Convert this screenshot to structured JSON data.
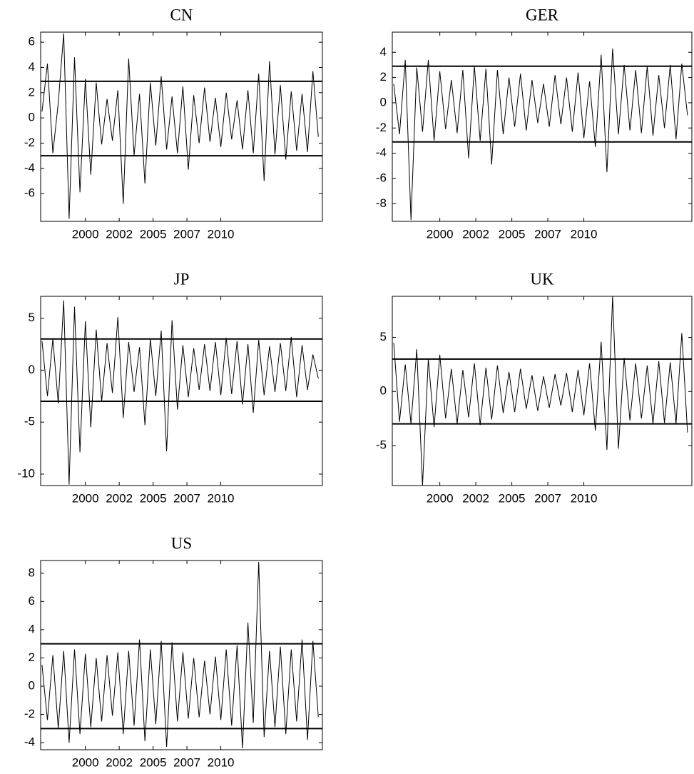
{
  "chart_data": [
    {
      "type": "line",
      "title": "CN",
      "color": "#000000",
      "x": [
        1996.8,
        1997.2,
        1997.6,
        1998,
        1998.4,
        1998.8,
        1999.2,
        1999.6,
        2000,
        2000.4,
        2000.8,
        2001.2,
        2001.6,
        2002,
        2002.4,
        2002.8,
        2003.2,
        2003.6,
        2004,
        2004.4,
        2004.8,
        2005.2,
        2005.6,
        2006,
        2006.4,
        2006.8,
        2007.2,
        2007.6,
        2008,
        2008.4,
        2008.8,
        2009.2,
        2009.6,
        2010,
        2010.4,
        2010.8,
        2011.2,
        2011.6,
        2012,
        2012.4,
        2012.8,
        2013.2,
        2013.6,
        2014,
        2014.4,
        2014.8,
        2015.2,
        2015.6,
        2016,
        2016.4,
        2016.8,
        2017.2
      ],
      "values": [
        0.5,
        4.3,
        -2.8,
        1.2,
        6.7,
        -8.0,
        4.8,
        -5.9,
        3.1,
        -4.5,
        2.8,
        -2.1,
        1.5,
        -1.8,
        2.2,
        -6.8,
        4.7,
        -3.0,
        1.9,
        -5.2,
        2.8,
        -2.2,
        3.3,
        -2.5,
        1.7,
        -2.8,
        2.5,
        -4.1,
        1.8,
        -2.0,
        2.4,
        -1.9,
        1.6,
        -2.3,
        2.0,
        -1.7,
        1.4,
        -2.5,
        2.2,
        -2.8,
        3.5,
        -5.0,
        4.5,
        -2.9,
        2.6,
        -3.3,
        2.1,
        -2.6,
        1.9,
        -2.7,
        3.7,
        -1.5
      ],
      "hlines": [
        2.9,
        -3
      ],
      "xlim": [
        1996.7,
        2017.5
      ],
      "xticks": [
        2000,
        {
          "value": 2002.5,
          "label": "2002"
        },
        2005,
        {
          "value": 2007.5,
          "label": "2007"
        },
        2010
      ],
      "ylim": [
        -8.2,
        6.8
      ],
      "yticks": [
        -6,
        -4,
        -2,
        0,
        2,
        4,
        6
      ]
    },
    {
      "type": "line",
      "title": "GER",
      "color": "#000000",
      "x": [
        1996.8,
        1997.2,
        1997.6,
        1998,
        1998.4,
        1998.8,
        1999.2,
        1999.6,
        2000,
        2000.4,
        2000.8,
        2001.2,
        2001.6,
        2002,
        2002.4,
        2002.8,
        2003.2,
        2003.6,
        2004,
        2004.4,
        2004.8,
        2005.2,
        2005.6,
        2006,
        2006.4,
        2006.8,
        2007.2,
        2007.6,
        2008,
        2008.4,
        2008.8,
        2009.2,
        2009.6,
        2010,
        2010.4,
        2010.8,
        2011.2,
        2011.6,
        2012,
        2012.4,
        2012.8,
        2013.2,
        2013.6,
        2014,
        2014.4,
        2014.8,
        2015.2,
        2015.6,
        2016,
        2016.4,
        2016.8,
        2017.2
      ],
      "values": [
        1.5,
        -2.5,
        3.4,
        -9.3,
        2.8,
        -2.3,
        3.4,
        -3.0,
        2.5,
        -2.1,
        1.8,
        -2.4,
        2.6,
        -4.4,
        2.9,
        -3.0,
        2.7,
        -4.9,
        2.6,
        -2.5,
        2.0,
        -1.9,
        2.3,
        -2.2,
        1.8,
        -1.6,
        1.5,
        -1.9,
        2.2,
        -1.7,
        2.0,
        -2.3,
        2.4,
        -2.8,
        1.7,
        -3.5,
        3.8,
        -5.5,
        4.3,
        -2.5,
        3.0,
        -2.2,
        2.6,
        -2.4,
        2.9,
        -2.6,
        2.2,
        -2.0,
        3.0,
        -2.9,
        3.1,
        -1.0
      ],
      "hlines": [
        2.9,
        -3.1
      ],
      "xlim": [
        1996.7,
        2017.5
      ],
      "xticks": [
        2000,
        {
          "value": 2002.5,
          "label": "2002"
        },
        2005,
        {
          "value": 2007.5,
          "label": "2007"
        },
        2010
      ],
      "ylim": [
        -9.4,
        5.6
      ],
      "yticks": [
        -8,
        -6,
        -4,
        -2,
        0,
        2,
        4
      ]
    },
    {
      "type": "line",
      "title": "JP",
      "color": "#000000",
      "x": [
        1996.8,
        1997.2,
        1997.6,
        1998,
        1998.4,
        1998.8,
        1999.2,
        1999.6,
        2000,
        2000.4,
        2000.8,
        2001.2,
        2001.6,
        2002,
        2002.4,
        2002.8,
        2003.2,
        2003.6,
        2004,
        2004.4,
        2004.8,
        2005.2,
        2005.6,
        2006,
        2006.4,
        2006.8,
        2007.2,
        2007.6,
        2008,
        2008.4,
        2008.8,
        2009.2,
        2009.6,
        2010,
        2010.4,
        2010.8,
        2011.2,
        2011.6,
        2012,
        2012.4,
        2012.8,
        2013.2,
        2013.6,
        2014,
        2014.4,
        2014.8,
        2015.2,
        2015.6,
        2016,
        2016.4,
        2016.8,
        2017.2
      ],
      "values": [
        2.8,
        -2.5,
        3.0,
        -3.2,
        6.7,
        -11.0,
        6.1,
        -7.9,
        4.7,
        -5.5,
        3.9,
        -3.0,
        2.6,
        -2.2,
        5.1,
        -4.6,
        2.7,
        -2.1,
        2.2,
        -5.3,
        3.0,
        -2.5,
        3.8,
        -7.8,
        4.8,
        -3.8,
        2.4,
        -2.6,
        2.1,
        -1.9,
        2.5,
        -2.0,
        2.7,
        -2.4,
        3.1,
        -2.3,
        2.8,
        -3.3,
        2.5,
        -4.1,
        2.9,
        -2.4,
        2.3,
        -2.1,
        2.6,
        -2.0,
        3.2,
        -2.6,
        2.4,
        -1.9,
        1.5,
        -0.8
      ],
      "hlines": [
        3,
        -3
      ],
      "xlim": [
        1996.7,
        2017.5
      ],
      "xticks": [
        2000,
        {
          "value": 2002.5,
          "label": "2002"
        },
        2005,
        {
          "value": 2007.5,
          "label": "2007"
        },
        2010
      ],
      "ylim": [
        -11.1,
        7.1
      ],
      "yticks": [
        -10,
        -5,
        0,
        5
      ]
    },
    {
      "type": "line",
      "title": "UK",
      "color": "#000000",
      "x": [
        1996.8,
        1997.2,
        1997.6,
        1998,
        1998.4,
        1998.8,
        1999.2,
        1999.6,
        2000,
        2000.4,
        2000.8,
        2001.2,
        2001.6,
        2002,
        2002.4,
        2002.8,
        2003.2,
        2003.6,
        2004,
        2004.4,
        2004.8,
        2005.2,
        2005.6,
        2006,
        2006.4,
        2006.8,
        2007.2,
        2007.6,
        2008,
        2008.4,
        2008.8,
        2009.2,
        2009.6,
        2010,
        2010.4,
        2010.8,
        2011.2,
        2011.6,
        2012,
        2012.4,
        2012.8,
        2013.2,
        2013.6,
        2014,
        2014.4,
        2014.8,
        2015.2,
        2015.6,
        2016,
        2016.4,
        2016.8,
        2017.2
      ],
      "values": [
        4.5,
        -2.8,
        2.5,
        -3.0,
        3.9,
        -8.7,
        3.0,
        -3.3,
        3.4,
        -2.5,
        2.1,
        -3.0,
        2.0,
        -2.4,
        2.6,
        -3.1,
        2.2,
        -2.6,
        2.4,
        -2.0,
        1.8,
        -1.9,
        2.1,
        -1.6,
        1.5,
        -1.8,
        1.4,
        -1.5,
        1.6,
        -1.3,
        1.7,
        -1.9,
        2.0,
        -2.2,
        2.6,
        -3.6,
        4.6,
        -5.4,
        8.8,
        -5.3,
        3.1,
        -2.7,
        2.6,
        -2.5,
        2.4,
        -3.0,
        2.8,
        -2.9,
        2.7,
        -3.0,
        5.4,
        -3.8
      ],
      "hlines": [
        3,
        -3
      ],
      "xlim": [
        1996.7,
        2017.5
      ],
      "xticks": [
        2000,
        {
          "value": 2002.5,
          "label": "2002"
        },
        2005,
        {
          "value": 2007.5,
          "label": "2007"
        },
        2010
      ],
      "ylim": [
        -8.7,
        8.8
      ],
      "yticks": [
        -5,
        0,
        5
      ]
    },
    {
      "type": "line",
      "title": "US",
      "color": "#000000",
      "x": [
        1996.8,
        1997.2,
        1997.6,
        1998,
        1998.4,
        1998.8,
        1999.2,
        1999.6,
        2000,
        2000.4,
        2000.8,
        2001.2,
        2001.6,
        2002,
        2002.4,
        2002.8,
        2003.2,
        2003.6,
        2004,
        2004.4,
        2004.8,
        2005.2,
        2005.6,
        2006,
        2006.4,
        2006.8,
        2007.2,
        2007.6,
        2008,
        2008.4,
        2008.8,
        2009.2,
        2009.6,
        2010,
        2010.4,
        2010.8,
        2011.2,
        2011.6,
        2012,
        2012.4,
        2012.8,
        2013.2,
        2013.6,
        2014,
        2014.4,
        2014.8,
        2015.2,
        2015.6,
        2016,
        2016.4,
        2016.8,
        2017.2
      ],
      "values": [
        1.5,
        -2.4,
        2.2,
        -3.0,
        2.5,
        -4.0,
        2.6,
        -3.4,
        2.3,
        -2.9,
        2.0,
        -2.5,
        2.2,
        -2.1,
        2.4,
        -3.4,
        2.5,
        -2.8,
        3.3,
        -3.9,
        2.6,
        -2.7,
        3.2,
        -4.3,
        3.1,
        -2.5,
        2.4,
        -2.3,
        2.0,
        -2.2,
        1.8,
        -2.0,
        2.1,
        -2.4,
        2.6,
        -2.8,
        2.9,
        -4.4,
        4.5,
        -2.6,
        8.8,
        -3.6,
        2.5,
        -2.9,
        2.8,
        -3.4,
        2.6,
        -2.5,
        3.3,
        -3.8,
        3.2,
        -2.2
      ],
      "hlines": [
        3,
        -3
      ],
      "xlim": [
        1996.7,
        2017.5
      ],
      "xticks": [
        2000,
        {
          "value": 2002.5,
          "label": "2002"
        },
        2005,
        {
          "value": 2007.5,
          "label": "2007"
        },
        2010
      ],
      "ylim": [
        -4.5,
        8.9
      ],
      "yticks": [
        -4,
        -2,
        0,
        2,
        4,
        6,
        8
      ]
    }
  ]
}
